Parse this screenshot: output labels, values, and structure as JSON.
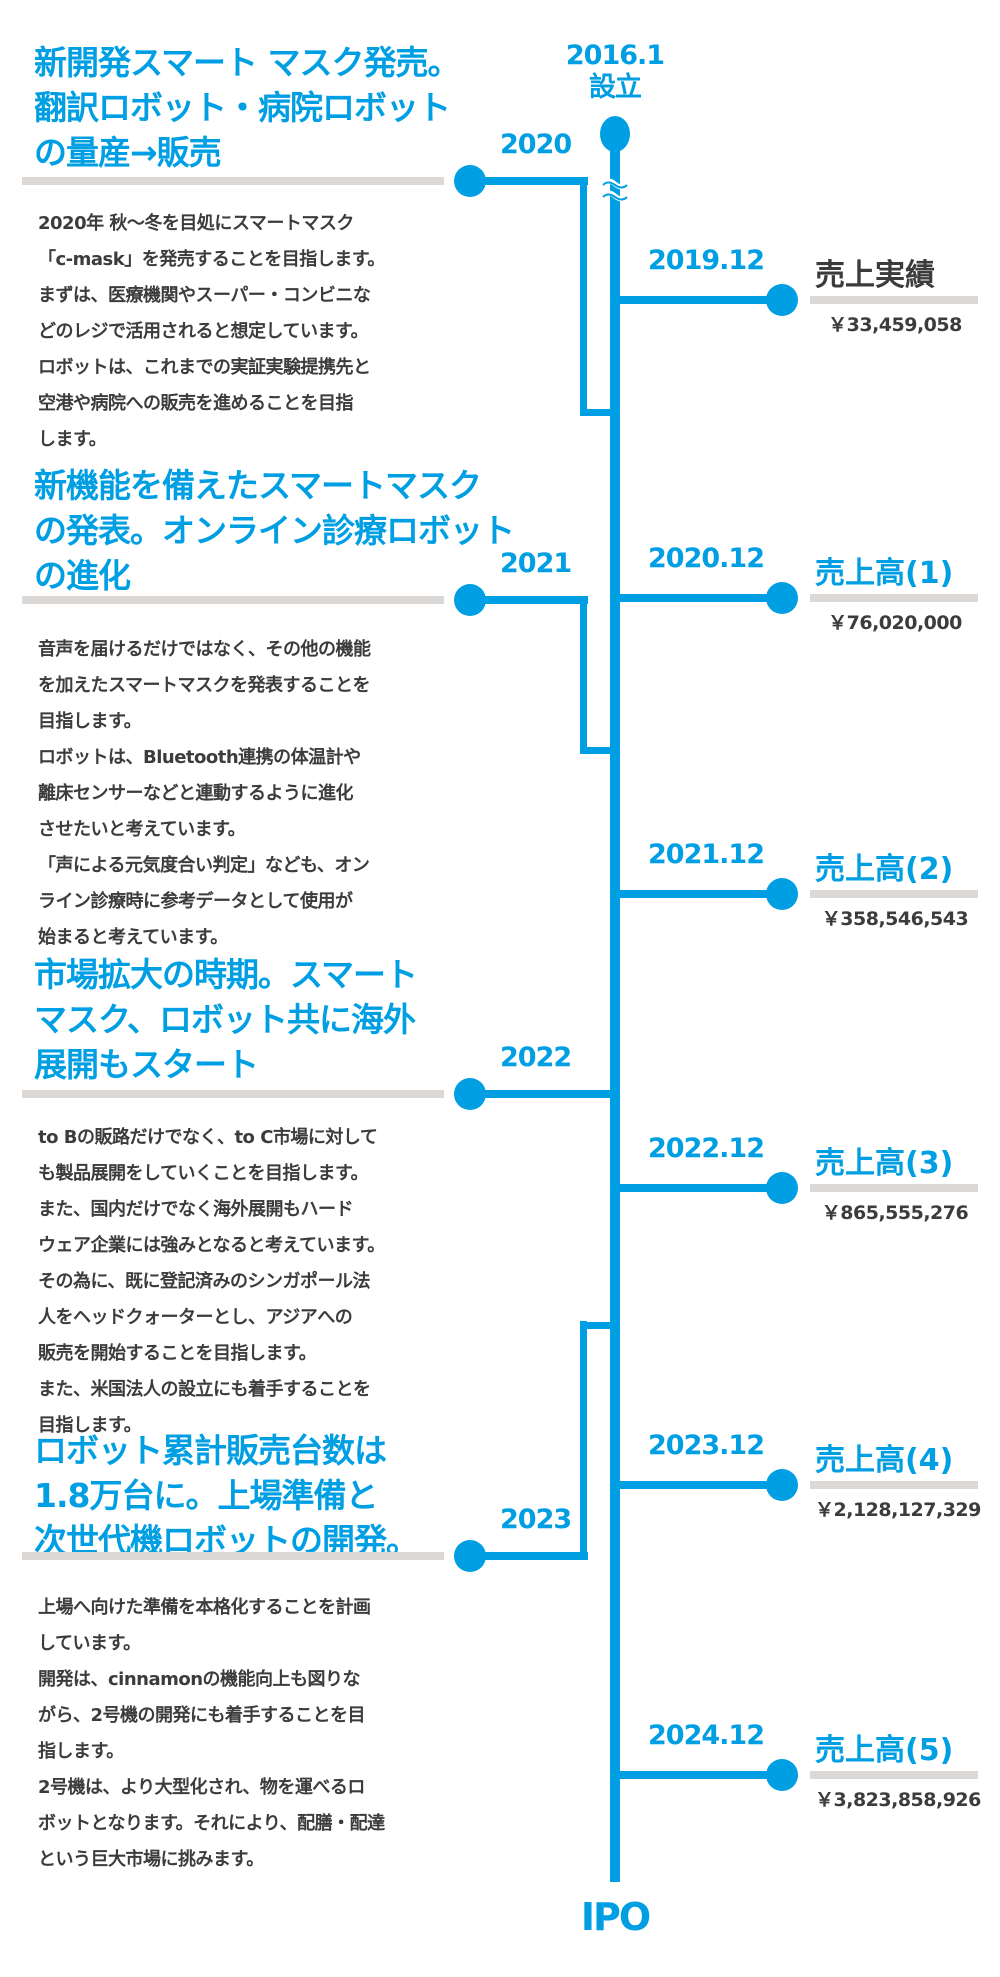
{
  "colors": {
    "accent": "#009fe3",
    "text": "#3c3c3c",
    "divider": "#dcd8d5"
  },
  "start": {
    "date": "2016.1",
    "label": "設立"
  },
  "end_label": "IPO",
  "phases": [
    {
      "year": "2020",
      "heading": [
        "新開発スマート マスク発売。",
        "翻訳ロボット・病院ロボット",
        "の量産→販売"
      ],
      "body": [
        "2020年 秋〜冬を目処にスマートマスク",
        "「c-mask」を発売することを目指します。",
        "まずは、医療機関やスーパー・コンビニな",
        "どのレジで活用されると想定しています。",
        "ロボットは、これまでの実証実験提携先と",
        "空港や病院への販売を進めることを目指",
        "します。"
      ]
    },
    {
      "year": "2021",
      "heading": [
        "新機能を備えたスマートマスク",
        "の発表。オンライン診療ロボット",
        "の進化"
      ],
      "body": [
        "音声を届けるだけではなく、その他の機能",
        "を加えたスマートマスクを発表することを",
        "目指します。",
        "ロボットは、Bluetooth連携の体温計や",
        "離床センサーなどと連動するように進化",
        "させたいと考えています。",
        "「声による元気度合い判定」なども、オン",
        "ライン診療時に参考データとして使用が",
        "始まると考えています。"
      ]
    },
    {
      "year": "2022",
      "heading": [
        "市場拡大の時期。スマート",
        "マスク、ロボット共に海外",
        "展開もスタート"
      ],
      "body": [
        "to Bの販路だけでなく、to C市場に対して",
        "も製品展開をしていくことを目指します。",
        "また、国内だけでなく海外展開もハード",
        "ウェア企業には強みとなると考えています。",
        "その為に、既に登記済みのシンガポール法",
        "人をヘッドクォーターとし、アジアへの",
        "販売を開始することを目指します。",
        "また、米国法人の設立にも着手することを",
        "目指します。"
      ]
    },
    {
      "year": "2023",
      "heading": [
        "ロボット累計販売台数は",
        "1.8万台に。上場準備と",
        "次世代機ロボットの開発。"
      ],
      "body": [
        "上場へ向けた準備を本格化することを計画",
        "しています。",
        "開発は、cinnamonの機能向上も図りな",
        "がら、2号機の開発にも着手することを目",
        "指します。",
        "2号機は、より大型化され、物を運べるロ",
        "ボットとなります。それにより、配膳・配達",
        "という巨大市場に挑みます。"
      ]
    }
  ],
  "sales": [
    {
      "date": "2019.12",
      "title": "売上実績",
      "amount": "￥33,459,058",
      "title_color": "#3c3c3c"
    },
    {
      "date": "2020.12",
      "title": "売上高(1)",
      "amount": "￥76,020,000",
      "title_color": "#009fe3"
    },
    {
      "date": "2021.12",
      "title": "売上高(2)",
      "amount": "￥358,546,543",
      "title_color": "#009fe3"
    },
    {
      "date": "2022.12",
      "title": "売上高(3)",
      "amount": "￥865,555,276",
      "title_color": "#009fe3"
    },
    {
      "date": "2023.12",
      "title": "売上高(4)",
      "amount": "￥2,128,127,329",
      "title_color": "#009fe3"
    },
    {
      "date": "2024.12",
      "title": "売上高(5)",
      "amount": "￥3,823,858,926",
      "title_color": "#009fe3"
    }
  ]
}
